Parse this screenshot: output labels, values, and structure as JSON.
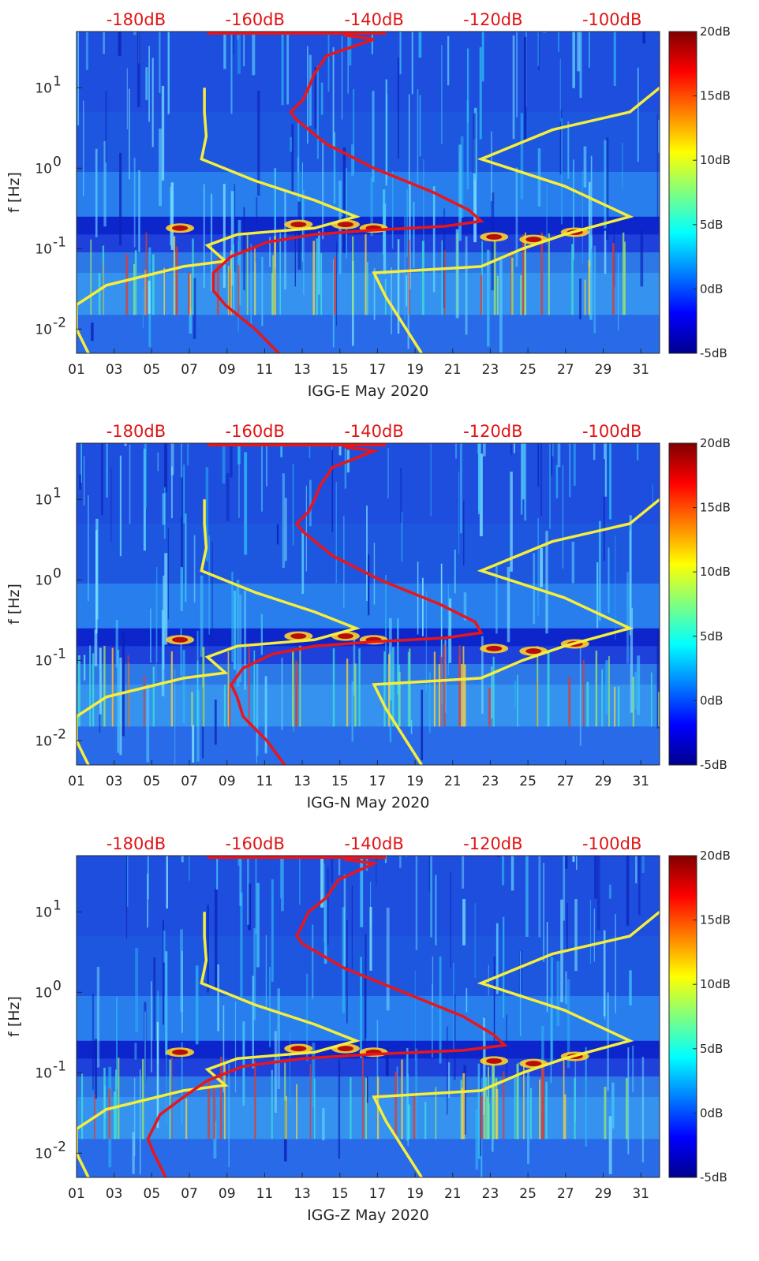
{
  "colors": {
    "power_curve": "#e8161a",
    "noise_model": "#f5ee3c",
    "top_axis_text": "#e01414",
    "axis_text": "#262626",
    "colormap": [
      "#00008f",
      "#0000ff",
      "#00ffff",
      "#ffff00",
      "#ff0000",
      "#800000"
    ]
  },
  "chart_data": [
    {
      "type": "heatmap",
      "xlabel": "IGG-E May 2020",
      "ylabel": "f [Hz]",
      "x_ticks": [
        "01",
        "03",
        "05",
        "07",
        "09",
        "11",
        "13",
        "15",
        "17",
        "19",
        "21",
        "23",
        "25",
        "27",
        "29",
        "31"
      ],
      "x_range_days": [
        1,
        32
      ],
      "y_scale": "log",
      "y_range_hz": [
        0.005,
        50
      ],
      "y_ticks": [
        {
          "value": 0.01,
          "base": "10",
          "exp": "-2"
        },
        {
          "value": 0.1,
          "base": "10",
          "exp": "-1"
        },
        {
          "value": 1,
          "base": "10",
          "exp": "0"
        },
        {
          "value": 10,
          "base": "10",
          "exp": "1"
        }
      ],
      "top_axis_ticks": [
        "-180dB",
        "-160dB",
        "-140dB",
        "-120dB",
        "-100dB"
      ],
      "top_axis_range_db": [
        -190,
        -92
      ],
      "colorbar_ticks": [
        "20dB",
        "15dB",
        "10dB",
        "5dB",
        "0dB",
        "-5dB"
      ],
      "colorbar_range_db": [
        -5,
        20
      ],
      "noise_model_curve": {
        "color": "yellow",
        "low_noise_dB_vs_freq": [
          [
            -168.5,
            10
          ],
          [
            -168.5,
            5
          ],
          [
            -168.2,
            2.5
          ],
          [
            -169,
            1.3
          ],
          [
            -160,
            0.7
          ],
          [
            -150,
            0.4
          ],
          [
            -143,
            0.25
          ],
          [
            -150,
            0.18
          ],
          [
            -163,
            0.15
          ],
          [
            -168,
            0.11
          ],
          [
            -165,
            0.07
          ],
          [
            -172,
            0.06
          ],
          [
            -185,
            0.035
          ],
          [
            -190,
            0.02
          ],
          [
            -190,
            0.01
          ],
          [
            -188,
            0.005
          ]
        ],
        "high_noise_dB_vs_freq": [
          [
            -92,
            10
          ],
          [
            -97,
            5
          ],
          [
            -110,
            3
          ],
          [
            -122,
            1.3
          ],
          [
            -108,
            0.6
          ],
          [
            -97,
            0.25
          ],
          [
            -108,
            0.15
          ],
          [
            -115,
            0.1
          ],
          [
            -122,
            0.06
          ],
          [
            -140,
            0.05
          ],
          [
            -138,
            0.025
          ],
          [
            -132,
            0.005
          ]
        ]
      },
      "psd_curve": {
        "color": "red",
        "dB_vs_freq": [
          [
            -145,
            45
          ],
          [
            -140,
            40
          ],
          [
            -148,
            25
          ],
          [
            -150,
            15
          ],
          [
            -151,
            10
          ],
          [
            -152,
            7
          ],
          [
            -154,
            5
          ],
          [
            -153,
            4
          ],
          [
            -148,
            2
          ],
          [
            -140,
            1
          ],
          [
            -130,
            0.5
          ],
          [
            -124,
            0.3
          ],
          [
            -122,
            0.22
          ],
          [
            -128,
            0.19
          ],
          [
            -140,
            0.17
          ],
          [
            -150,
            0.15
          ],
          [
            -158,
            0.12
          ],
          [
            -164,
            0.08
          ],
          [
            -167,
            0.05
          ],
          [
            -167,
            0.03
          ],
          [
            -165,
            0.02
          ],
          [
            -160,
            0.01
          ],
          [
            -156,
            0.005
          ]
        ]
      }
    },
    {
      "type": "heatmap",
      "xlabel": "IGG-N May 2020",
      "ylabel": "f [Hz]",
      "x_ticks": [
        "01",
        "03",
        "05",
        "07",
        "09",
        "11",
        "13",
        "15",
        "17",
        "19",
        "21",
        "23",
        "25",
        "27",
        "29",
        "31"
      ],
      "x_range_days": [
        1,
        32
      ],
      "y_scale": "log",
      "y_range_hz": [
        0.005,
        50
      ],
      "y_ticks": [
        {
          "value": 0.01,
          "base": "10",
          "exp": "-2"
        },
        {
          "value": 0.1,
          "base": "10",
          "exp": "-1"
        },
        {
          "value": 1,
          "base": "10",
          "exp": "0"
        },
        {
          "value": 10,
          "base": "10",
          "exp": "1"
        }
      ],
      "top_axis_ticks": [
        "-180dB",
        "-160dB",
        "-140dB",
        "-120dB",
        "-100dB"
      ],
      "top_axis_range_db": [
        -190,
        -92
      ],
      "colorbar_ticks": [
        "20dB",
        "15dB",
        "10dB",
        "5dB",
        "0dB",
        "-5dB"
      ],
      "colorbar_range_db": [
        -5,
        20
      ],
      "noise_model_curve": {
        "color": "yellow",
        "low_noise_dB_vs_freq": [
          [
            -168.5,
            10
          ],
          [
            -168.5,
            5
          ],
          [
            -168.2,
            2.5
          ],
          [
            -169,
            1.3
          ],
          [
            -160,
            0.7
          ],
          [
            -150,
            0.4
          ],
          [
            -143,
            0.25
          ],
          [
            -150,
            0.18
          ],
          [
            -163,
            0.15
          ],
          [
            -168,
            0.11
          ],
          [
            -165,
            0.07
          ],
          [
            -172,
            0.06
          ],
          [
            -185,
            0.035
          ],
          [
            -190,
            0.02
          ],
          [
            -190,
            0.01
          ],
          [
            -188,
            0.005
          ]
        ],
        "high_noise_dB_vs_freq": [
          [
            -92,
            10
          ],
          [
            -97,
            5
          ],
          [
            -110,
            3
          ],
          [
            -122,
            1.3
          ],
          [
            -108,
            0.6
          ],
          [
            -97,
            0.25
          ],
          [
            -108,
            0.15
          ],
          [
            -115,
            0.1
          ],
          [
            -122,
            0.06
          ],
          [
            -140,
            0.05
          ],
          [
            -138,
            0.025
          ],
          [
            -132,
            0.005
          ]
        ]
      },
      "psd_curve": {
        "color": "red",
        "dB_vs_freq": [
          [
            -145,
            45
          ],
          [
            -140,
            40
          ],
          [
            -147,
            25
          ],
          [
            -149,
            15
          ],
          [
            -150,
            10
          ],
          [
            -151,
            7
          ],
          [
            -153,
            5
          ],
          [
            -152,
            4
          ],
          [
            -147,
            2
          ],
          [
            -139,
            1
          ],
          [
            -129,
            0.5
          ],
          [
            -123,
            0.3
          ],
          [
            -122,
            0.22
          ],
          [
            -128,
            0.19
          ],
          [
            -140,
            0.17
          ],
          [
            -150,
            0.15
          ],
          [
            -157,
            0.12
          ],
          [
            -162,
            0.08
          ],
          [
            -164,
            0.05
          ],
          [
            -163,
            0.035
          ],
          [
            -162,
            0.02
          ],
          [
            -158,
            0.01
          ],
          [
            -155,
            0.005
          ]
        ]
      }
    },
    {
      "type": "heatmap",
      "xlabel": "IGG-Z May 2020",
      "ylabel": "f [Hz]",
      "x_ticks": [
        "01",
        "03",
        "05",
        "07",
        "09",
        "11",
        "13",
        "15",
        "17",
        "19",
        "21",
        "23",
        "25",
        "27",
        "29",
        "31"
      ],
      "x_range_days": [
        1,
        32
      ],
      "y_scale": "log",
      "y_range_hz": [
        0.005,
        50
      ],
      "y_ticks": [
        {
          "value": 0.01,
          "base": "10",
          "exp": "-2"
        },
        {
          "value": 0.1,
          "base": "10",
          "exp": "-1"
        },
        {
          "value": 1,
          "base": "10",
          "exp": "0"
        },
        {
          "value": 10,
          "base": "10",
          "exp": "1"
        }
      ],
      "top_axis_ticks": [
        "-180dB",
        "-160dB",
        "-140dB",
        "-120dB",
        "-100dB"
      ],
      "top_axis_range_db": [
        -190,
        -92
      ],
      "colorbar_ticks": [
        "20dB",
        "15dB",
        "10dB",
        "5dB",
        "0dB",
        "-5dB"
      ],
      "colorbar_range_db": [
        -5,
        20
      ],
      "noise_model_curve": {
        "color": "yellow",
        "low_noise_dB_vs_freq": [
          [
            -168.5,
            10
          ],
          [
            -168.5,
            5
          ],
          [
            -168.2,
            2.5
          ],
          [
            -169,
            1.3
          ],
          [
            -160,
            0.7
          ],
          [
            -150,
            0.4
          ],
          [
            -143,
            0.25
          ],
          [
            -150,
            0.18
          ],
          [
            -163,
            0.15
          ],
          [
            -168,
            0.11
          ],
          [
            -165,
            0.07
          ],
          [
            -172,
            0.06
          ],
          [
            -185,
            0.035
          ],
          [
            -190,
            0.02
          ],
          [
            -190,
            0.01
          ],
          [
            -188,
            0.005
          ]
        ],
        "high_noise_dB_vs_freq": [
          [
            -92,
            10
          ],
          [
            -97,
            5
          ],
          [
            -110,
            3
          ],
          [
            -122,
            1.3
          ],
          [
            -108,
            0.6
          ],
          [
            -97,
            0.25
          ],
          [
            -108,
            0.15
          ],
          [
            -115,
            0.1
          ],
          [
            -122,
            0.06
          ],
          [
            -140,
            0.05
          ],
          [
            -138,
            0.025
          ],
          [
            -132,
            0.005
          ]
        ]
      },
      "psd_curve": {
        "color": "red",
        "dB_vs_freq": [
          [
            -145,
            45
          ],
          [
            -140,
            40
          ],
          [
            -146,
            25
          ],
          [
            -148,
            15
          ],
          [
            -151,
            10
          ],
          [
            -152,
            7
          ],
          [
            -153,
            5
          ],
          [
            -152,
            4
          ],
          [
            -145,
            2
          ],
          [
            -135,
            1
          ],
          [
            -125,
            0.5
          ],
          [
            -120,
            0.3
          ],
          [
            -118,
            0.22
          ],
          [
            -125,
            0.19
          ],
          [
            -140,
            0.17
          ],
          [
            -152,
            0.15
          ],
          [
            -162,
            0.12
          ],
          [
            -168,
            0.08
          ],
          [
            -172,
            0.05
          ],
          [
            -176,
            0.03
          ],
          [
            -178,
            0.015
          ],
          [
            -177,
            0.01
          ],
          [
            -175,
            0.005
          ]
        ]
      }
    }
  ]
}
